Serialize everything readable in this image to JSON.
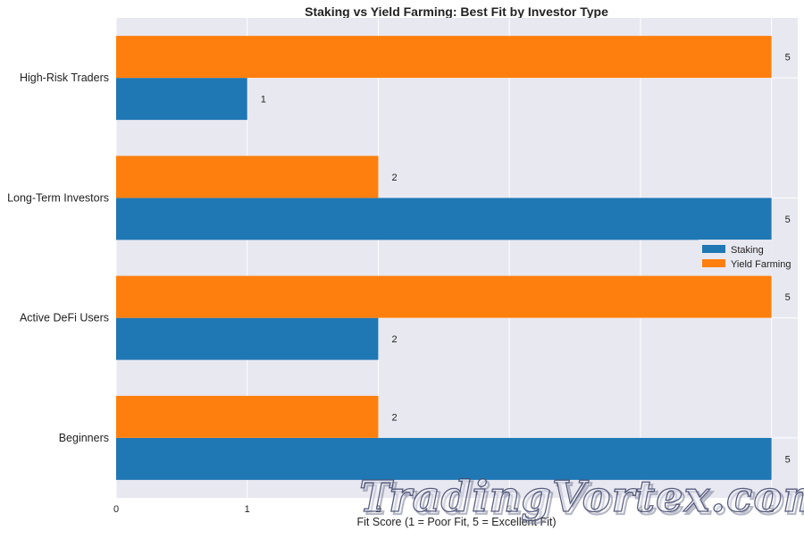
{
  "watermark": "TradingVortex.com",
  "chart_data": {
    "type": "bar",
    "orientation": "horizontal",
    "title": "Staking vs Yield Farming: Best Fit by Investor Type",
    "xlabel": "Fit Score (1 = Poor Fit, 5 = Excellent Fit)",
    "ylabel": "",
    "categories": [
      "Beginners",
      "Active DeFi Users",
      "Long-Term Investors",
      "High-Risk Traders"
    ],
    "series": [
      {
        "name": "Staking",
        "values": [
          5,
          2,
          5,
          1
        ],
        "color": "#1f77b4"
      },
      {
        "name": "Yield Farming",
        "values": [
          2,
          5,
          2,
          5
        ],
        "color": "#ff7f0e"
      }
    ],
    "xlim": [
      0,
      5.2
    ],
    "xticks": [
      0,
      1,
      2,
      3,
      4,
      5
    ],
    "grid": true,
    "legend_position": "center-right",
    "data_labels": true,
    "colors": {
      "plot_background": "#e8e8f0",
      "grid": "#ffffff",
      "text": "#222222"
    }
  }
}
